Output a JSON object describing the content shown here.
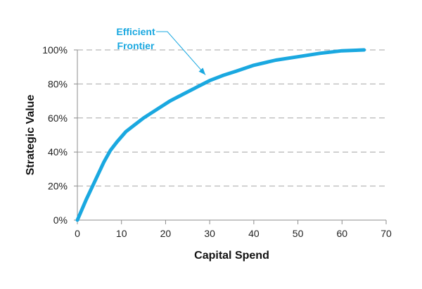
{
  "chart_data": {
    "type": "line",
    "title": "",
    "xlabel": "Capital Spend",
    "ylabel": "Strategic Value",
    "xlim": [
      0,
      70
    ],
    "ylim": [
      0,
      1
    ],
    "x_ticks": [
      0,
      10,
      20,
      30,
      40,
      50,
      60,
      70
    ],
    "y_ticks": [
      0,
      0.2,
      0.4,
      0.6,
      0.8,
      1.0
    ],
    "x_tick_labels": [
      "0",
      "10",
      "20",
      "30",
      "40",
      "50",
      "60",
      "70"
    ],
    "y_tick_labels": [
      "0%",
      "20%",
      "40%",
      "60%",
      "80%",
      "100%"
    ],
    "grid": "horizontal dashed",
    "legend": "none",
    "series_color": "#1aa8e0",
    "grid_color": "#a6a6a6",
    "series": [
      {
        "x": [
          0,
          2,
          4,
          6,
          7.5,
          9,
          11,
          13,
          15,
          18,
          21,
          24,
          27,
          30,
          33,
          36,
          40,
          45,
          50,
          55,
          60,
          65
        ],
        "y": [
          0,
          0.12,
          0.23,
          0.34,
          0.41,
          0.46,
          0.52,
          0.56,
          0.6,
          0.65,
          0.7,
          0.74,
          0.78,
          0.82,
          0.85,
          0.875,
          0.91,
          0.94,
          0.96,
          0.98,
          0.995,
          1.0
        ]
      }
    ],
    "annotations": [
      {
        "lines": [
          "Efficient",
          "Frontier"
        ],
        "points_to": {
          "x": 30,
          "y": 0.82
        },
        "color": "#1aa8e0"
      }
    ]
  }
}
